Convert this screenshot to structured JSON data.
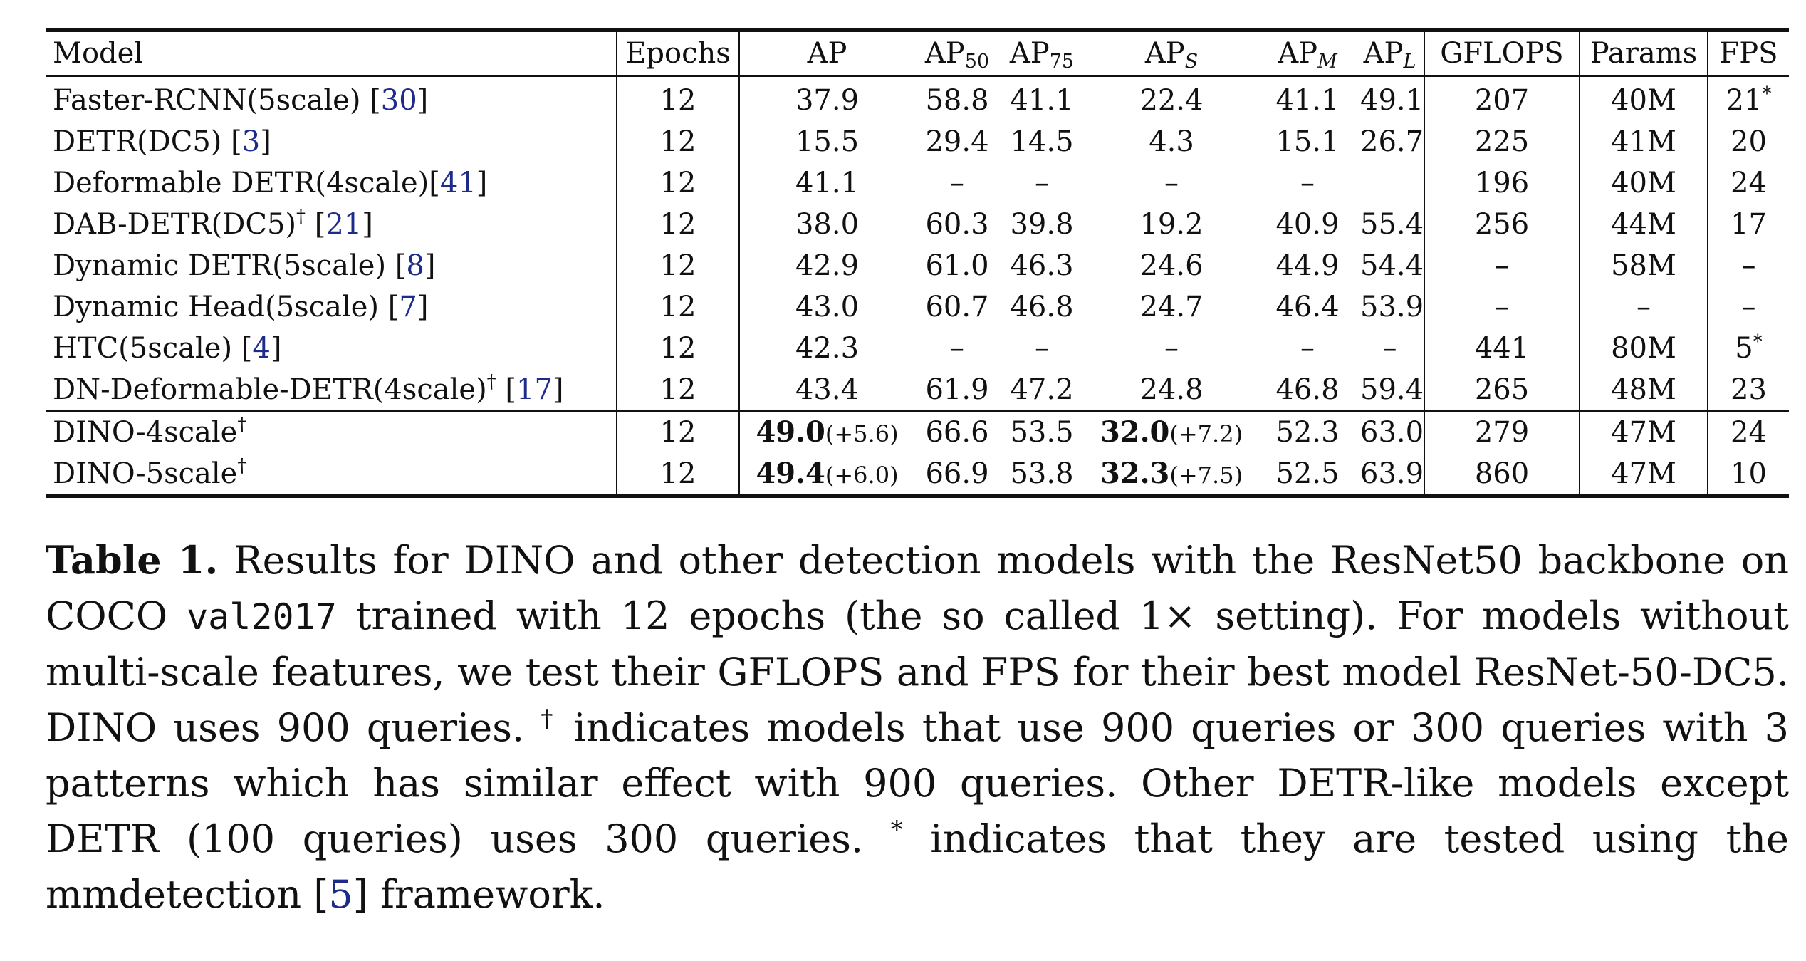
{
  "table": {
    "headers": {
      "model": "Model",
      "epochs": "Epochs",
      "ap": "AP",
      "ap50_base": "AP",
      "ap50_sub": "50",
      "ap75_base": "AP",
      "ap75_sub": "75",
      "aps_base": "AP",
      "aps_sub": "S",
      "apm_base": "AP",
      "apm_sub": "M",
      "apl_base": "AP",
      "apl_sub": "L",
      "gflops": "GFLOPS",
      "params": "Params",
      "fps": "FPS"
    },
    "rows": [
      {
        "model": "Faster-RCNN(5scale) ",
        "ref": "30",
        "epochs": "12",
        "ap": "37.9",
        "ap50": "58.8",
        "ap75": "41.1",
        "aps": "22.4",
        "apm": "41.1",
        "apl": "49.1",
        "gflops": "207",
        "params": "40M",
        "fps": "21",
        "fps_mark": "*"
      },
      {
        "model": "DETR(DC5) ",
        "ref": "3",
        "epochs": "12",
        "ap": "15.5",
        "ap50": "29.4",
        "ap75": "14.5",
        "aps": "4.3",
        "apm": "15.1",
        "apl": "26.7",
        "gflops": "225",
        "params": "41M",
        "fps": "20"
      },
      {
        "model": "Deformable DETR(4scale)",
        "ref": "41",
        "epochs": "12",
        "ap": "41.1",
        "ap50": "–",
        "ap75": "–",
        "aps": "–",
        "apm": "–",
        "apl": "",
        "gflops": "196",
        "params": "40M",
        "fps": "24"
      },
      {
        "model": "DAB-DETR(DC5)",
        "model_mark": "†",
        "ref": "21",
        "epochs": "12",
        "ap": "38.0",
        "ap50": "60.3",
        "ap75": "39.8",
        "aps": "19.2",
        "apm": "40.9",
        "apl": "55.4",
        "gflops": "256",
        "params": "44M",
        "fps": "17"
      },
      {
        "model": "Dynamic DETR(5scale) ",
        "ref": "8",
        "epochs": "12",
        "ap": "42.9",
        "ap50": "61.0",
        "ap75": "46.3",
        "aps": "24.6",
        "apm": "44.9",
        "apl": "54.4",
        "gflops": "–",
        "params": "58M",
        "fps": "–"
      },
      {
        "model": "Dynamic Head(5scale) ",
        "ref": "7",
        "epochs": "12",
        "ap": "43.0",
        "ap50": "60.7",
        "ap75": "46.8",
        "aps": "24.7",
        "apm": "46.4",
        "apl": "53.9",
        "gflops": "–",
        "params": "–",
        "fps": "–"
      },
      {
        "model": "HTC(5scale) ",
        "ref": "4",
        "epochs": "12",
        "ap": "42.3",
        "ap50": "–",
        "ap75": "–",
        "aps": "–",
        "apm": "–",
        "apl": "–",
        "gflops": "441",
        "params": "80M",
        "fps": "5",
        "fps_mark": "*"
      },
      {
        "model": "DN-Deformable-DETR(4scale)",
        "model_mark": "†",
        "ref": "17",
        "epochs": "12",
        "ap": "43.4",
        "ap50": "61.9",
        "ap75": "47.2",
        "aps": "24.8",
        "apm": "46.8",
        "apl": "59.4",
        "gflops": "265",
        "params": "48M",
        "fps": "23"
      }
    ],
    "dino_rows": [
      {
        "model": "DINO-4scale",
        "model_mark": "†",
        "epochs": "12",
        "ap": "49.0",
        "ap_gain": "(+5.6)",
        "ap50": "66.6",
        "ap75": "53.5",
        "aps": "32.0",
        "aps_gain": "(+7.2)",
        "apm": "52.3",
        "apl": "63.0",
        "gflops": "279",
        "params": "47M",
        "fps": "24"
      },
      {
        "model": "DINO-5scale",
        "model_mark": "†",
        "epochs": "12",
        "ap": "49.4",
        "ap_gain": "(+6.0)",
        "ap50": "66.9",
        "ap75": "53.8",
        "aps": "32.3",
        "aps_gain": "(+7.5)",
        "apm": "52.5",
        "apl": "63.9",
        "gflops": "860",
        "params": "47M",
        "fps": "10"
      }
    ]
  },
  "caption": {
    "label": "Table 1.",
    "part1": " Results for DINO and other detection models with the ResNet50 backbone on COCO ",
    "mono": "val2017",
    "part2": " trained with 12 epochs (the so called 1× setting). For models without multi-scale features, we test their GFLOPS and FPS for their best model ResNet-50-DC5. DINO uses 900 queries. ",
    "dagger": "†",
    "part3": " indicates models that use 900 queries or 300 queries with 3 patterns which has similar effect with 900 queries. Other DETR-like models except DETR (100 queries) uses 300 queries. ",
    "star": "*",
    "part4": " indicates that they are tested using the mmdetection ",
    "ref_open": "[",
    "ref": "5",
    "ref_close": "]",
    "part5": " framework."
  },
  "colors": {
    "reference_link": "#1d2b8a",
    "text": "#111111"
  }
}
